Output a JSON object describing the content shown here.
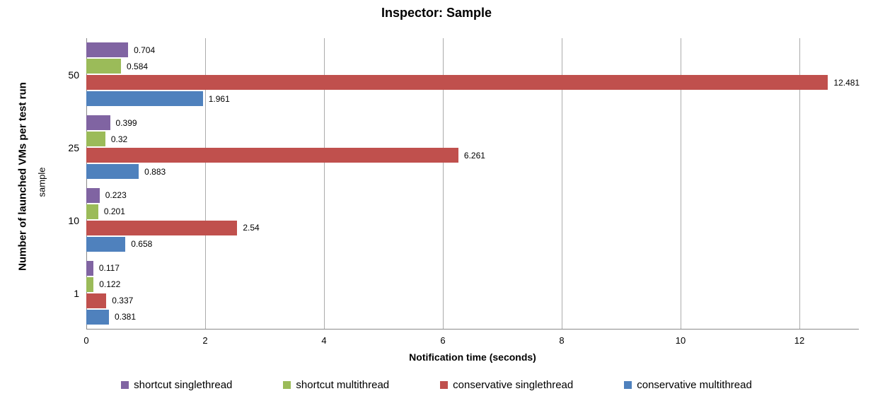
{
  "chart_data": {
    "type": "bar",
    "orientation": "horizontal",
    "title": "Inspector: Sample",
    "xlabel": "Notification time (seconds)",
    "ylabel": "Number of launched VMs per test run",
    "ylabel_inner": "sample",
    "categories": [
      "50",
      "25",
      "10",
      "1"
    ],
    "series": [
      {
        "name": "shortcut singlethread",
        "color": "#8064A2",
        "values": [
          0.704,
          0.399,
          0.223,
          0.117
        ],
        "labels": [
          "0.704",
          "0.399",
          "0.223",
          "0.117"
        ]
      },
      {
        "name": "shortcut multithread",
        "color": "#9BBB59",
        "values": [
          0.584,
          0.32,
          0.201,
          0.122
        ],
        "labels": [
          "0.584",
          "0.32",
          "0.201",
          "0.122"
        ]
      },
      {
        "name": "conservative singlethread",
        "color": "#C0504D",
        "values": [
          12.481,
          6.261,
          2.54,
          0.337
        ],
        "labels": [
          "12.481",
          "6.261",
          "2.54",
          "0.337"
        ]
      },
      {
        "name": "conservative multithread",
        "color": "#4F81BD",
        "values": [
          1.961,
          0.883,
          0.658,
          0.381
        ],
        "labels": [
          "1.961",
          "0.883",
          "0.658",
          "0.381"
        ]
      }
    ],
    "xlim": [
      0,
      13
    ],
    "xticks": [
      0,
      2,
      4,
      6,
      8,
      10,
      12
    ],
    "grid": true,
    "legend_position": "bottom"
  }
}
